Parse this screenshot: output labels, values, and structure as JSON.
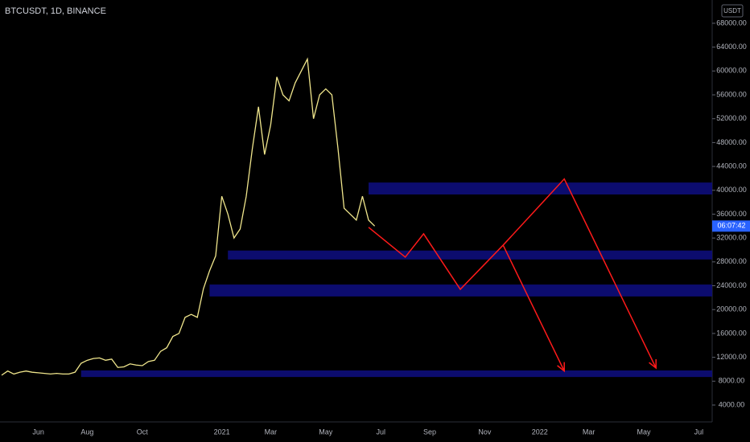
{
  "chart_data": {
    "type": "line",
    "title": "BTCUSDT, 1D, BINANCE",
    "currency": "USDT",
    "countdown": "06:07:42",
    "categories": [
      null,
      null,
      null,
      null,
      null,
      null,
      "Jun",
      null,
      null,
      null,
      null,
      null,
      null,
      null,
      "Aug",
      null,
      null,
      null,
      null,
      null,
      null,
      null,
      null,
      "Oct",
      null,
      null,
      null,
      null,
      null,
      null,
      null,
      null,
      null,
      null,
      null,
      null,
      "2021",
      null,
      null,
      null,
      null,
      null,
      null,
      null,
      "Mar",
      null,
      null,
      null,
      null,
      null,
      null,
      null,
      null,
      "May",
      null,
      null,
      null,
      null,
      null,
      null,
      null,
      null,
      "Jul",
      null,
      null,
      null,
      null,
      null,
      null,
      null,
      "Sep",
      null,
      null,
      null,
      null,
      null,
      null,
      null,
      null,
      "Nov",
      null,
      null,
      null,
      null,
      null,
      null,
      null,
      null,
      "2022",
      null,
      null,
      null,
      null,
      null,
      null,
      null,
      "Mar",
      null,
      null,
      null,
      null,
      null,
      null,
      null,
      null,
      "May",
      null,
      null,
      null,
      null,
      null,
      null,
      null,
      null,
      "Jul",
      null,
      null
    ],
    "series": [
      {
        "name": "BTCUSDT",
        "color": "#f0e68c",
        "values": [
          9000,
          9700,
          9200,
          9500,
          9700,
          9500,
          9400,
          9300,
          9200,
          9300,
          9200,
          9200,
          9500,
          11000,
          11500,
          11800,
          11900,
          11500,
          11700,
          10300,
          10400,
          10900,
          10700,
          10600,
          11300,
          11500,
          13000,
          13600,
          15500,
          16000,
          18700,
          19200,
          18700,
          23500,
          26500,
          29000,
          39000,
          36000,
          32000,
          33500,
          39000,
          47000,
          54000,
          46000,
          51000,
          59000,
          56000,
          55000,
          58000,
          60000,
          62000,
          52000,
          56000,
          57000,
          56000,
          47000,
          37000,
          36000,
          35000,
          39000,
          35000,
          34000,
          null,
          null,
          null,
          null,
          null,
          null,
          null,
          null,
          null,
          null,
          null,
          null,
          null,
          null,
          null,
          null,
          null,
          null,
          null,
          null,
          null,
          null,
          null,
          null,
          null,
          null,
          null,
          null,
          null,
          null,
          null,
          null,
          null,
          null,
          null,
          null,
          null,
          null,
          null,
          null,
          null,
          null,
          null,
          null,
          null,
          null,
          null,
          null,
          null,
          null,
          null,
          null,
          null,
          null,
          null
        ]
      }
    ],
    "zones": [
      {
        "start": 60,
        "low": 39300,
        "high": 41300
      },
      {
        "start": 37,
        "low": 28400,
        "high": 29900
      },
      {
        "start": 34,
        "low": 22200,
        "high": 24200
      },
      {
        "start": 13,
        "low": 8700,
        "high": 9800
      }
    ],
    "projection": {
      "color": "#ff1a1a",
      "points": [
        {
          "i": 60,
          "v": 33800
        },
        {
          "i": 66,
          "v": 28800
        },
        {
          "i": 69,
          "v": 32700
        },
        {
          "i": 75,
          "v": 23400
        },
        {
          "i": 82,
          "v": 30800
        },
        {
          "i": 92,
          "v": 41900
        },
        {
          "i": 107,
          "v": 10200
        }
      ],
      "branch": [
        {
          "i": 82,
          "v": 30800
        },
        {
          "i": 92,
          "v": 9700
        }
      ]
    },
    "zone_color": "#0d0d7a",
    "ylim": [
      1170,
      71900
    ],
    "yticks": [
      {
        "value": 4000,
        "label": "4000.00"
      },
      {
        "value": 8000,
        "label": "8000.00"
      },
      {
        "value": 12000,
        "label": "12000.00"
      },
      {
        "value": 16000,
        "label": "16000.00"
      },
      {
        "value": 20000,
        "label": "20000.00"
      },
      {
        "value": 24000,
        "label": "24000.00"
      },
      {
        "value": 28000,
        "label": "28000.00"
      },
      {
        "value": 32000,
        "label": "32000.00"
      },
      {
        "value": 36000,
        "label": "36000.00"
      },
      {
        "value": 40000,
        "label": "40000.00"
      },
      {
        "value": 44000,
        "label": "44000.00"
      },
      {
        "value": 48000,
        "label": "48000.00"
      },
      {
        "value": 52000,
        "label": "52000.00"
      },
      {
        "value": 56000,
        "label": "56000.00"
      },
      {
        "value": 60000,
        "label": "60000.00"
      },
      {
        "value": 64000,
        "label": "64000.00"
      },
      {
        "value": 68000,
        "label": "68000.00"
      }
    ]
  }
}
